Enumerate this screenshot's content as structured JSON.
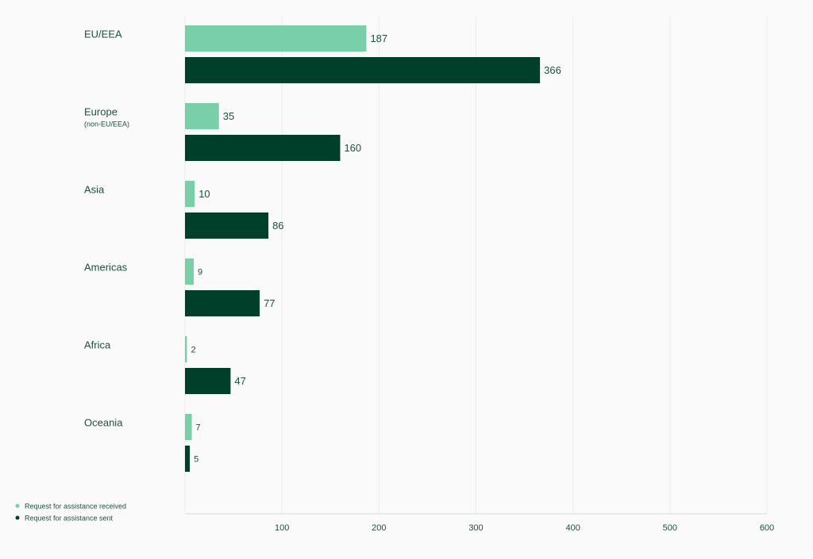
{
  "chart_data": {
    "type": "hbar",
    "categories": [
      "EU/EEA",
      "Europe",
      "Asia",
      "Americas",
      "Africa",
      "Oceania"
    ],
    "category_sublabels": [
      null,
      "(non-EU/EEA)",
      null,
      null,
      null,
      null
    ],
    "series": [
      {
        "name": "Request for assistance received",
        "color": "#79cfa8",
        "values": [
          187,
          35,
          10,
          9,
          2,
          7
        ]
      },
      {
        "name": "Request for assistance sent",
        "color": "#00402a",
        "values": [
          366,
          160,
          86,
          77,
          47,
          5
        ]
      }
    ],
    "xlim": [
      0,
      600
    ],
    "xticks": [
      100,
      200,
      300,
      400,
      500,
      600
    ],
    "grid": true,
    "legend": "bottom-left"
  }
}
